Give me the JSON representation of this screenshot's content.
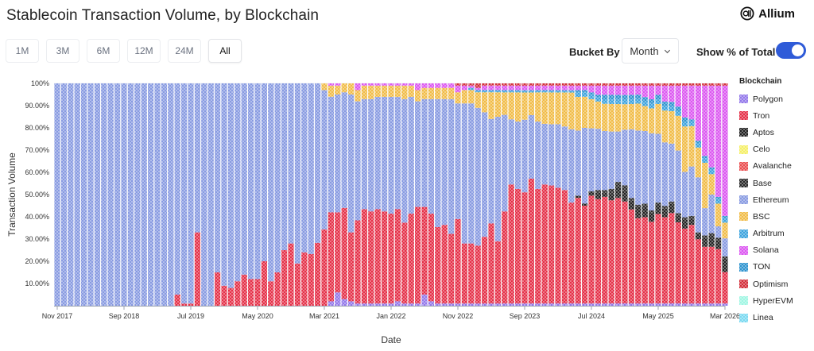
{
  "header": {
    "title": "Stablecoin Transaction Volume, by Blockchain",
    "brand": "Allium"
  },
  "ranges": [
    {
      "label": "1M",
      "active": false
    },
    {
      "label": "3M",
      "active": false
    },
    {
      "label": "6M",
      "active": false
    },
    {
      "label": "12M",
      "active": false
    },
    {
      "label": "24M",
      "active": false
    },
    {
      "label": "All",
      "active": true
    }
  ],
  "controls": {
    "bucket_label": "Bucket By",
    "bucket_value": "Month",
    "pct_label": "Show % of Total",
    "pct_on": true
  },
  "colors": {
    "Polygon": "#8b6ee8",
    "Tron": "#e3203a",
    "Aptos": "#111111",
    "Celo": "#f4ee5a",
    "Avalanche": "#e84142",
    "Base": "#1a1a1a",
    "Ethereum": "#7f93df",
    "BSC": "#f0b73a",
    "Arbitrum": "#2d9cdb",
    "Solana": "#d94bf0",
    "TON": "#1f8ccc",
    "Optimism": "#d01e2a",
    "HyperEVM": "#98f5e1",
    "Linea": "#6fd6f0"
  },
  "chart_data": {
    "type": "bar",
    "stacked": true,
    "normalized": true,
    "title": "Stablecoin Transaction Volume, by Blockchain",
    "xlabel": "Date",
    "ylabel": "Transaction Volume",
    "ylim": [
      0,
      100
    ],
    "yticks": [
      "10.00%",
      "20.00%",
      "30.00%",
      "40.00%",
      "50.00%",
      "60.00%",
      "70.00%",
      "80.00%",
      "90.00%",
      "100%"
    ],
    "xticks": [
      {
        "label": "Nov 2017",
        "index": 0
      },
      {
        "label": "Sep 2018",
        "index": 10
      },
      {
        "label": "Jul 2019",
        "index": 20
      },
      {
        "label": "May 2020",
        "index": 30
      },
      {
        "label": "Mar 2021",
        "index": 40
      },
      {
        "label": "Jan 2022",
        "index": 50
      },
      {
        "label": "Nov 2022",
        "index": 60
      },
      {
        "label": "Sep 2023",
        "index": 70
      },
      {
        "label": "Jul 2024",
        "index": 80
      },
      {
        "label": "May 2025",
        "index": 90
      },
      {
        "label": "Mar 2026",
        "index": 100
      }
    ],
    "legend_title": "Blockchain",
    "legend": [
      "Polygon",
      "Tron",
      "Aptos",
      "Celo",
      "Avalanche",
      "Base",
      "Ethereum",
      "BSC",
      "Arbitrum",
      "Solana",
      "TON",
      "Optimism",
      "HyperEVM",
      "Linea"
    ],
    "stack_order": [
      "Polygon",
      "Tron",
      "Aptos",
      "Base",
      "Ethereum",
      "BSC",
      "Arbitrum",
      "TON",
      "Solana",
      "Optimism"
    ],
    "series": [
      {
        "name": "Polygon",
        "values": [
          0,
          0,
          0,
          0,
          0,
          0,
          0,
          0,
          0,
          0,
          0,
          0,
          0,
          0,
          0,
          0,
          0,
          0,
          0,
          0,
          0,
          0,
          0,
          0,
          0,
          0,
          0,
          0,
          0,
          0,
          0,
          0,
          0,
          0,
          0,
          0,
          0,
          0,
          0,
          0,
          0,
          2,
          6,
          3,
          2,
          1,
          1,
          1,
          1,
          1,
          1,
          2,
          1,
          1,
          1,
          5,
          2,
          1,
          1,
          1,
          1,
          1,
          1,
          1,
          1,
          1,
          1,
          1,
          1,
          1,
          1,
          1,
          1,
          1,
          1,
          1,
          1,
          1,
          1,
          1,
          1,
          1,
          1,
          1,
          1,
          1,
          1,
          1,
          1,
          1,
          1,
          1,
          1,
          1,
          1,
          1,
          1,
          1,
          1,
          1,
          1
        ]
      },
      {
        "name": "Tron",
        "values": [
          0,
          0,
          0,
          0,
          0,
          0,
          0,
          0,
          0,
          0,
          0,
          0,
          0,
          0,
          0,
          0,
          0,
          0,
          5,
          1,
          1,
          33,
          0,
          0,
          15,
          9,
          8,
          11,
          14,
          12,
          12,
          20,
          11,
          15,
          25,
          28,
          19,
          24,
          23,
          28,
          34,
          40,
          36,
          41,
          31,
          37,
          42,
          41,
          42,
          41,
          40,
          41,
          36,
          40,
          43,
          39,
          39,
          34,
          35,
          31,
          38,
          27,
          27,
          26,
          30,
          36,
          28,
          41,
          53,
          51,
          49,
          55,
          51,
          53,
          52,
          51,
          50,
          44,
          47,
          44,
          48,
          46,
          47,
          45,
          46,
          44,
          41,
          38,
          38,
          36,
          39,
          38,
          39,
          35,
          33,
          35,
          28,
          25,
          25,
          24,
          14,
          21
        ]
      },
      {
        "name": "Aptos",
        "values": [
          0,
          0,
          0,
          0,
          0,
          0,
          0,
          0,
          0,
          0,
          0,
          0,
          0,
          0,
          0,
          0,
          0,
          0,
          0,
          0,
          0,
          0,
          0,
          0,
          0,
          0,
          0,
          0,
          0,
          0,
          0,
          0,
          0,
          0,
          0,
          0,
          0,
          0,
          0,
          0,
          0,
          0,
          0,
          0,
          0,
          0,
          0,
          0,
          0,
          0,
          0,
          0,
          0,
          0,
          0,
          0,
          0,
          0,
          0,
          0,
          0,
          0,
          0,
          0,
          0,
          0,
          0,
          0,
          0,
          0,
          0,
          0,
          0,
          0,
          0,
          0,
          0,
          0,
          1,
          1,
          2,
          3,
          2,
          3,
          5,
          5,
          4,
          5,
          5,
          4,
          4,
          4,
          4,
          3,
          4,
          3,
          2,
          4,
          5,
          4,
          6,
          6
        ]
      },
      {
        "name": "Base",
        "values": [
          0,
          0,
          0,
          0,
          0,
          0,
          0,
          0,
          0,
          0,
          0,
          0,
          0,
          0,
          0,
          0,
          0,
          0,
          0,
          0,
          0,
          0,
          0,
          0,
          0,
          0,
          0,
          0,
          0,
          0,
          0,
          0,
          0,
          0,
          0,
          0,
          0,
          0,
          0,
          0,
          0,
          0,
          0,
          0,
          0,
          0,
          0,
          0,
          0,
          0,
          0,
          0,
          0,
          0,
          0,
          0,
          0,
          0,
          0,
          0,
          0,
          0,
          0,
          0,
          0,
          0,
          0,
          0,
          0,
          0,
          0,
          0,
          0,
          0,
          0,
          0,
          0,
          0,
          0,
          0,
          0,
          1,
          1,
          2,
          2,
          2,
          1,
          1,
          1,
          1,
          1,
          1,
          1,
          1,
          1,
          1,
          1,
          1,
          1,
          1,
          1,
          1
        ]
      },
      {
        "name": "Ethereum",
        "values": [
          100,
          100,
          100,
          100,
          100,
          100,
          100,
          100,
          100,
          100,
          100,
          100,
          100,
          100,
          100,
          100,
          100,
          100,
          95,
          99,
          99,
          67,
          100,
          100,
          85,
          91,
          92,
          89,
          86,
          88,
          88,
          80,
          89,
          85,
          75,
          72,
          81,
          76,
          76,
          71,
          62,
          52,
          53,
          52,
          62,
          53,
          49,
          50,
          50,
          51,
          52,
          50,
          55,
          52,
          47,
          48,
          51,
          57,
          56,
          60,
          52,
          63,
          63,
          62,
          56,
          47,
          56,
          43,
          29,
          30,
          32,
          28,
          30,
          27,
          27,
          28,
          28,
          32,
          29,
          34,
          28,
          27,
          26,
          25,
          22,
          24,
          30,
          33,
          32,
          34,
          30,
          28,
          25,
          27,
          20,
          22,
          24,
          12,
          17,
          5,
          8,
          6
        ]
      },
      {
        "name": "BSC",
        "values": [
          0,
          0,
          0,
          0,
          0,
          0,
          0,
          0,
          0,
          0,
          0,
          0,
          0,
          0,
          0,
          0,
          0,
          0,
          0,
          0,
          0,
          0,
          0,
          0,
          0,
          0,
          0,
          0,
          0,
          0,
          0,
          0,
          0,
          0,
          0,
          0,
          0,
          0,
          0,
          0,
          3,
          5,
          4,
          4,
          5,
          5,
          6,
          6,
          5,
          5,
          5,
          5,
          6,
          5,
          5,
          5,
          5,
          5,
          5,
          5,
          5,
          6,
          6,
          7,
          9,
          12,
          11,
          10,
          12,
          13,
          12,
          10,
          13,
          14,
          14,
          14,
          15,
          16,
          15,
          14,
          13,
          12,
          12,
          12,
          12,
          11,
          11,
          12,
          11,
          11,
          13,
          14,
          14,
          15,
          20,
          18,
          13,
          20,
          9,
          10,
          7,
          3
        ]
      },
      {
        "name": "Arbitrum",
        "values": [
          0,
          0,
          0,
          0,
          0,
          0,
          0,
          0,
          0,
          0,
          0,
          0,
          0,
          0,
          0,
          0,
          0,
          0,
          0,
          0,
          0,
          0,
          0,
          0,
          0,
          0,
          0,
          0,
          0,
          0,
          0,
          0,
          0,
          0,
          0,
          0,
          0,
          0,
          0,
          0,
          0,
          0,
          0,
          0,
          0,
          0,
          0,
          0,
          0,
          0,
          0,
          0,
          0,
          0,
          0,
          0,
          0,
          0,
          0,
          0,
          0,
          0,
          1,
          1,
          1,
          1,
          1,
          1,
          1,
          1,
          1,
          1,
          1,
          1,
          1,
          1,
          1,
          1,
          2,
          2,
          2,
          2,
          2,
          2,
          2,
          2,
          2,
          2,
          2,
          2,
          2,
          2,
          2,
          2,
          2,
          2,
          2,
          2,
          2,
          2,
          2,
          2
        ]
      },
      {
        "name": "TON",
        "values": [
          0,
          0,
          0,
          0,
          0,
          0,
          0,
          0,
          0,
          0,
          0,
          0,
          0,
          0,
          0,
          0,
          0,
          0,
          0,
          0,
          0,
          0,
          0,
          0,
          0,
          0,
          0,
          0,
          0,
          0,
          0,
          0,
          0,
          0,
          0,
          0,
          0,
          0,
          0,
          0,
          0,
          0,
          0,
          0,
          0,
          0,
          0,
          0,
          0,
          0,
          0,
          0,
          0,
          0,
          0,
          0,
          0,
          0,
          0,
          0,
          0,
          0,
          0,
          0,
          0,
          0,
          0,
          0,
          0,
          0,
          0,
          0,
          0,
          0,
          0,
          0,
          0,
          0,
          1,
          1,
          1,
          1,
          2,
          2,
          2,
          2,
          2,
          2,
          2,
          2,
          2,
          2,
          2,
          2,
          2,
          1,
          1,
          1,
          1,
          1,
          1,
          1
        ]
      },
      {
        "name": "Solana",
        "values": [
          0,
          0,
          0,
          0,
          0,
          0,
          0,
          0,
          0,
          0,
          0,
          0,
          0,
          0,
          0,
          0,
          0,
          0,
          0,
          0,
          0,
          0,
          0,
          0,
          0,
          0,
          0,
          0,
          0,
          0,
          0,
          0,
          0,
          0,
          0,
          0,
          0,
          0,
          0,
          0,
          0,
          1,
          1,
          0,
          0,
          3,
          1,
          1,
          1,
          1,
          1,
          1,
          1,
          1,
          3,
          2,
          2,
          2,
          2,
          2,
          3,
          2,
          1,
          1,
          2,
          2,
          2,
          2,
          2,
          2,
          2,
          2,
          2,
          2,
          2,
          2,
          2,
          2,
          2,
          2,
          3,
          4,
          4,
          4,
          4,
          4,
          4,
          4,
          5,
          6,
          4,
          7,
          7,
          9,
          14,
          15,
          24,
          31,
          36,
          49,
          58,
          56
        ]
      },
      {
        "name": "Optimism",
        "values": [
          0,
          0,
          0,
          0,
          0,
          0,
          0,
          0,
          0,
          0,
          0,
          0,
          0,
          0,
          0,
          0,
          0,
          0,
          0,
          0,
          0,
          0,
          0,
          0,
          0,
          0,
          0,
          0,
          0,
          0,
          0,
          0,
          0,
          0,
          0,
          0,
          0,
          0,
          0,
          0,
          0,
          0,
          0,
          0,
          0,
          0,
          0,
          0,
          0,
          0,
          0,
          0,
          0,
          0,
          0,
          0,
          0,
          0,
          0,
          0,
          1,
          1,
          1,
          2,
          1,
          1,
          1,
          1,
          1,
          1,
          1,
          1,
          1,
          1,
          1,
          1,
          1,
          1,
          1,
          1,
          1,
          1,
          1,
          1,
          1,
          1,
          1,
          1,
          1,
          1,
          1,
          1,
          1,
          1,
          1,
          1,
          1,
          1,
          1,
          1,
          1,
          1
        ]
      }
    ]
  }
}
